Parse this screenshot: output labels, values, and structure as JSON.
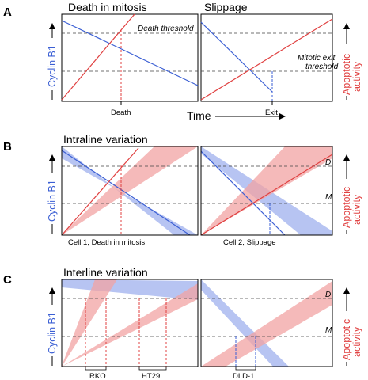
{
  "colors": {
    "cyclin": "#3b5fd4",
    "apoptotic": "#e04040",
    "blue_band": "#9fb0ee",
    "red_band": "#f2a3a3"
  },
  "panel_a": {
    "label": "A",
    "title_left": "Death in mitosis",
    "title_right": "Slippage",
    "death_threshold": "Death threshold",
    "exit_threshold_line1": "Mitotic exit",
    "exit_threshold_line2": "threshold",
    "death_tick": "Death",
    "exit_tick": "Exit",
    "time_label": "Time"
  },
  "panel_b": {
    "label": "B",
    "title": "Intraline variation",
    "d_label": "D",
    "m_label": "M",
    "caption_left": "Cell 1, Death in mitosis",
    "caption_right": "Cell 2, Slippage"
  },
  "panel_c": {
    "label": "C",
    "title": "Interline variation",
    "d_label": "D",
    "m_label": "M",
    "cell_lines": [
      "RKO",
      "HT29",
      "DLD-1"
    ]
  },
  "axes": {
    "left": "Cyclin B1",
    "right_line1": "Apoptotic",
    "right_line2": "activity"
  }
}
